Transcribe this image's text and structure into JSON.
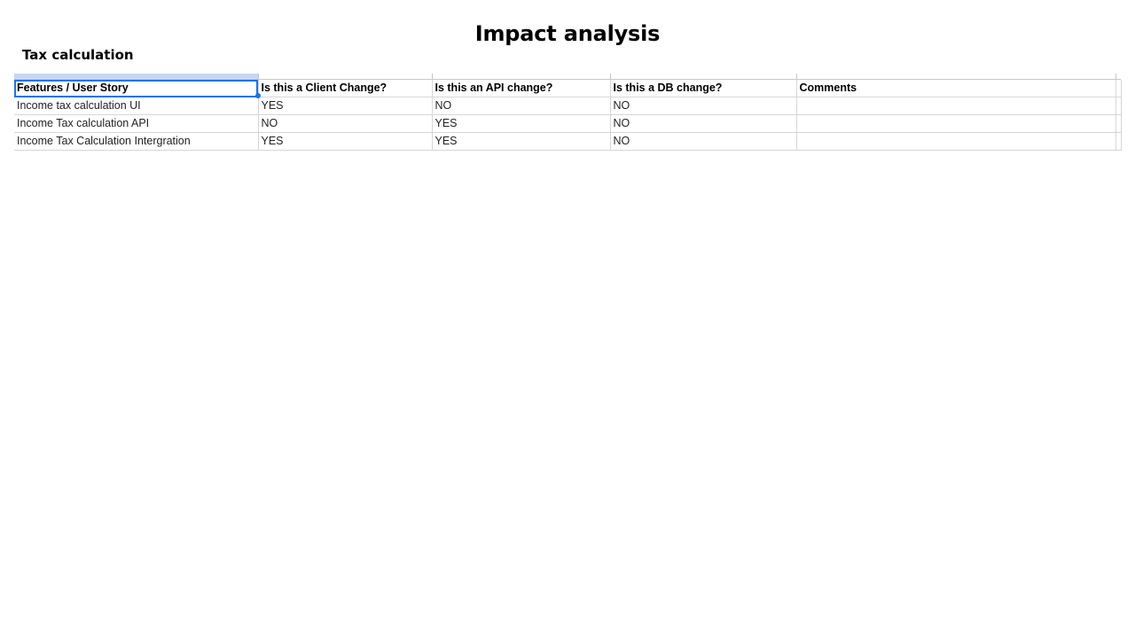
{
  "slide": {
    "title": "Impact analysis",
    "section_title": "Tax calculation"
  },
  "table": {
    "headers": [
      "Features / User Story",
      "Is this a Client Change?",
      "Is this an API change?",
      "Is this a DB change?",
      "Comments"
    ],
    "rows": [
      [
        "Income tax calculation UI",
        "YES",
        "NO",
        "NO",
        ""
      ],
      [
        "Income Tax calculation API",
        "NO",
        "YES",
        "NO",
        ""
      ],
      [
        "Income Tax Calculation Intergration",
        "YES",
        "YES",
        "NO",
        ""
      ]
    ]
  },
  "colors": {
    "selection_border": "#1a73e8",
    "gridline": "#d6d6d6"
  }
}
